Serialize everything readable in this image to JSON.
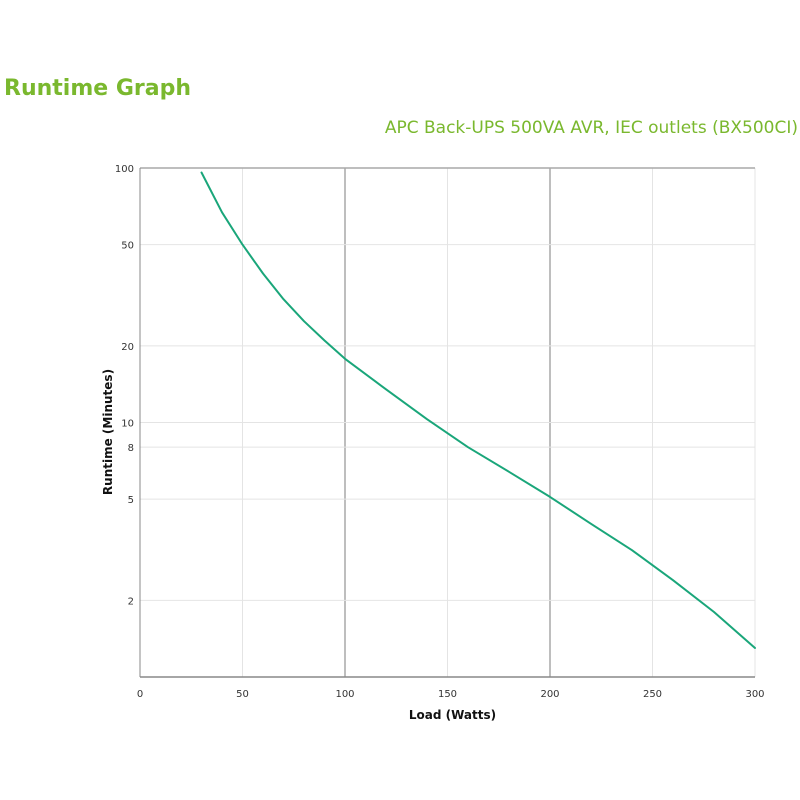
{
  "page": {
    "title": "Runtime Graph"
  },
  "colors": {
    "title": "#7ab82e",
    "curve": "#1aa67a",
    "grid_major": "#a9a9a9",
    "grid_minor": "#e4e4e4",
    "axis": "#888888"
  },
  "chart_data": {
    "type": "line",
    "title": "APC Back-UPS 500VA AVR, IEC outlets (BX500CI)",
    "xlabel": "Load (Watts)",
    "ylabel": "Runtime (Minutes)",
    "xscale": "linear",
    "yscale": "log",
    "xlim": [
      0,
      300
    ],
    "ylim": [
      1,
      100
    ],
    "x_ticks": [
      0,
      50,
      100,
      150,
      200,
      250,
      300
    ],
    "y_ticks": [
      {
        "value": 2,
        "label": "2"
      },
      {
        "value": 5,
        "label": "5"
      },
      {
        "value": 8,
        "label": "8"
      },
      {
        "value": 10,
        "label": "10"
      },
      {
        "value": 20,
        "label": "20"
      },
      {
        "value": 50,
        "label": "50"
      },
      {
        "value": 100,
        "label": "100"
      }
    ],
    "major_gridlines_x": [
      100,
      200
    ],
    "grid": true,
    "series": [
      {
        "x": [
          30,
          40,
          50,
          60,
          70,
          80,
          90,
          100,
          120,
          140,
          160,
          180,
          200,
          220,
          240,
          260,
          280,
          300
        ],
        "values": [
          96,
          67,
          50,
          38.5,
          30.5,
          25,
          21,
          17.8,
          13.5,
          10.3,
          8,
          6.4,
          5.1,
          4,
          3.15,
          2.4,
          1.8,
          1.3
        ]
      }
    ]
  }
}
